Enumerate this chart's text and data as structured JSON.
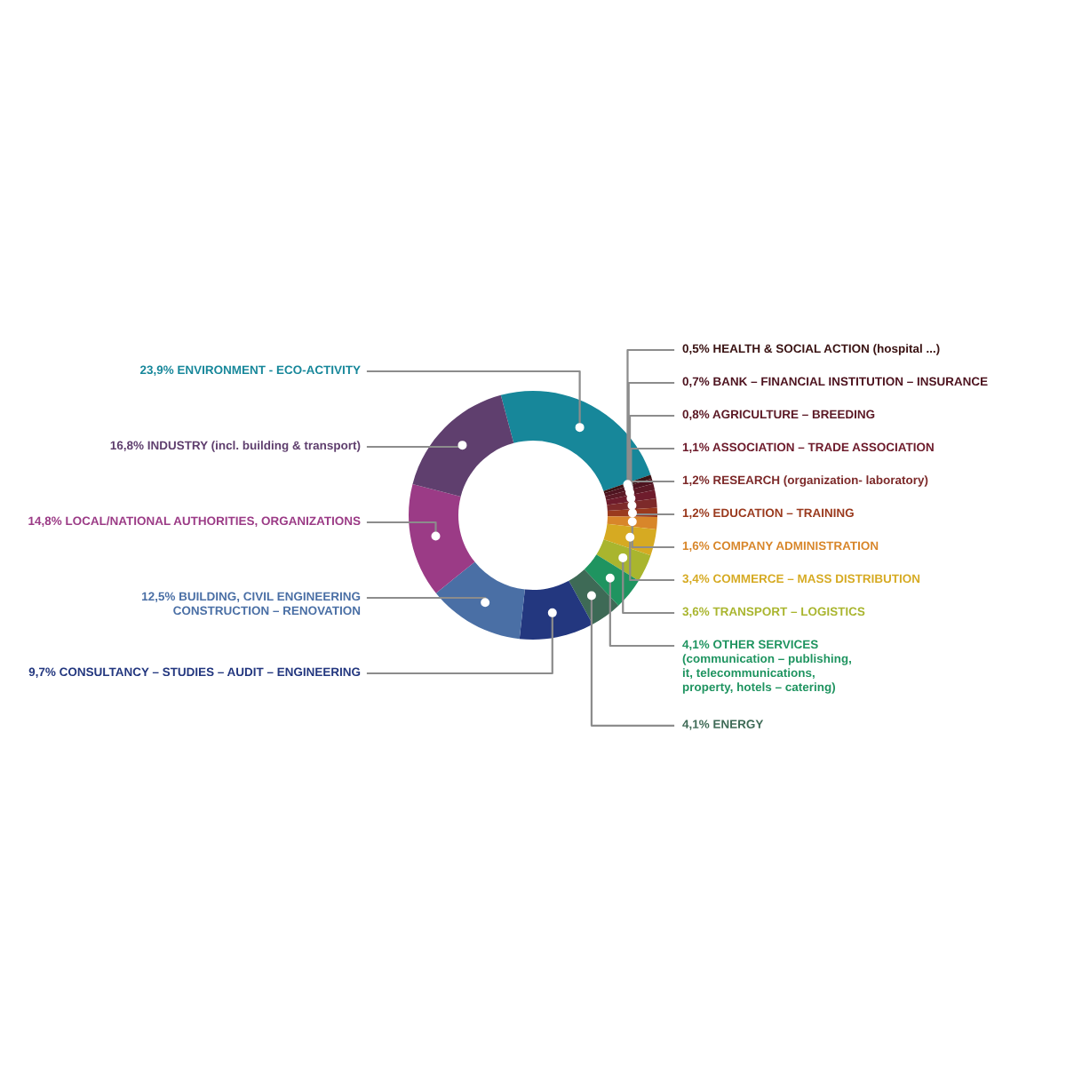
{
  "chart_data": {
    "type": "donut",
    "categories": [
      "ENVIRONMENT - ECO-ACTIVITY",
      "HEALTH & SOCIAL ACTION (hospital ...)",
      "BANK – FINANCIAL INSTITUTION – INSURANCE",
      "AGRICULTURE – BREEDING",
      "ASSOCIATION – TRADE ASSOCIATION",
      "RESEARCH (organization- laboratory)",
      "EDUCATION – TRAINING",
      "COMPANY ADMINISTRATION",
      "COMMERCE – MASS DISTRIBUTION",
      "TRANSPORT – LOGISTICS",
      "OTHER SERVICES\n(communication – publishing,\nit, telecommunications,\nproperty, hotels – catering)",
      "ENERGY",
      "CONSULTANCY – STUDIES – AUDIT – ENGINEERING",
      "BUILDING, CIVIL ENGINEERING\nCONSTRUCTION – RENOVATION",
      "LOCAL/NATIONAL AUTHORITIES, ORGANIZATIONS",
      "INDUSTRY (incl. building & transport)"
    ],
    "values": [
      23.9,
      0.5,
      0.7,
      0.8,
      1.1,
      1.2,
      1.2,
      1.6,
      3.4,
      3.6,
      4.1,
      4.1,
      9.7,
      12.5,
      14.8,
      16.8
    ],
    "value_labels": [
      "23,9%",
      "0,5%",
      "0,7%",
      "0,8%",
      "1,1%",
      "1,2%",
      "1,2%",
      "1,6%",
      "3,4%",
      "3,6%",
      "4,1%",
      "4,1%",
      "9,7%",
      "12,5%",
      "14,8%",
      "16,8%"
    ],
    "colors": [
      "#17879a",
      "#3b1414",
      "#4e1420",
      "#5c1a26",
      "#6e1c2c",
      "#7d2a2a",
      "#9a3a1e",
      "#d8862a",
      "#d6aa22",
      "#a9b52e",
      "#1f9460",
      "#3e6a56",
      "#23377f",
      "#4a6fa5",
      "#9b3b86",
      "#5f3f6e"
    ]
  }
}
